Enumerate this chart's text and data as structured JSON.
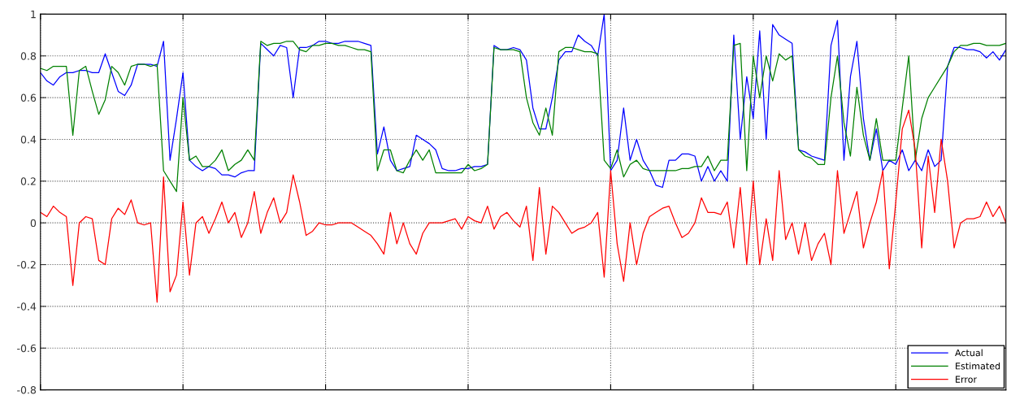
{
  "chart_data": {
    "type": "line",
    "categories": [
      null,
      null,
      null,
      null,
      null,
      null,
      null,
      null,
      null,
      null,
      null,
      null,
      null,
      null,
      null,
      null,
      null,
      null,
      null,
      null,
      null,
      null,
      null,
      null,
      null,
      null,
      null,
      null,
      null,
      null,
      null,
      null,
      null,
      null,
      null,
      null,
      null,
      null,
      null,
      null,
      null,
      null,
      null,
      null,
      null,
      null,
      null,
      null,
      null,
      null,
      null,
      null,
      null,
      null,
      null,
      null,
      null,
      null,
      null,
      null,
      null,
      null,
      null,
      null,
      null,
      null,
      null,
      null,
      null,
      null,
      null,
      null,
      null,
      null,
      null,
      null,
      null,
      null,
      null,
      null,
      null,
      null,
      null,
      null,
      null,
      null,
      null,
      null,
      null,
      null,
      null,
      null,
      null,
      null,
      null,
      null,
      null,
      null,
      null,
      null,
      null,
      null,
      null,
      null,
      null,
      null,
      null,
      null,
      null,
      null,
      null,
      null,
      null,
      null,
      null,
      null,
      null,
      null,
      null,
      null,
      null,
      null,
      null,
      null,
      null,
      null,
      null,
      null,
      null,
      null,
      null,
      null,
      null,
      null,
      null,
      null,
      null,
      null,
      null,
      null,
      null,
      null,
      null,
      null,
      null,
      null,
      null,
      null,
      null,
      null
    ],
    "ylim": [
      -0.8,
      1
    ],
    "yticks": [
      -0.8,
      -0.6,
      -0.4,
      -0.2,
      0,
      0.2,
      0.4,
      0.6,
      0.8,
      1
    ],
    "grid": true,
    "legend": "bottom right",
    "line_style": "solid",
    "marker": "none",
    "series": [
      {
        "name": "Actual",
        "color": "#0000ff",
        "values": [
          0.72,
          0.68,
          0.66,
          0.7,
          0.72,
          0.72,
          0.73,
          0.73,
          0.72,
          0.72,
          0.81,
          0.72,
          0.63,
          0.61,
          0.66,
          0.76,
          0.76,
          0.76,
          0.75,
          0.87,
          0.3,
          0.5,
          0.72,
          0.3,
          0.27,
          0.25,
          0.27,
          0.26,
          0.23,
          0.23,
          0.22,
          0.24,
          0.25,
          0.25,
          0.86,
          0.83,
          0.8,
          0.85,
          0.84,
          0.6,
          0.84,
          0.84,
          0.85,
          0.87,
          0.87,
          0.86,
          0.86,
          0.87,
          0.87,
          0.87,
          0.86,
          0.85,
          0.33,
          0.46,
          0.3,
          0.25,
          0.26,
          0.27,
          0.42,
          0.4,
          0.38,
          0.35,
          0.26,
          0.25,
          0.25,
          0.26,
          0.26,
          0.27,
          0.27,
          0.28,
          0.85,
          0.83,
          0.83,
          0.84,
          0.83,
          0.78,
          0.55,
          0.45,
          0.45,
          0.6,
          0.78,
          0.82,
          0.82,
          0.9,
          0.87,
          0.85,
          0.8,
          1.0,
          0.25,
          0.3,
          0.55,
          0.3,
          0.4,
          0.3,
          0.25,
          0.18,
          0.17,
          0.3,
          0.3,
          0.33,
          0.33,
          0.32,
          0.2,
          0.27,
          0.2,
          0.25,
          0.2,
          0.9,
          0.4,
          0.7,
          0.5,
          0.92,
          0.4,
          0.95,
          0.9,
          0.88,
          0.86,
          0.35,
          0.34,
          0.32,
          0.31,
          0.3,
          0.85,
          0.97,
          0.3,
          0.7,
          0.87,
          0.5,
          0.3,
          0.45,
          0.25,
          0.3,
          0.28,
          0.35,
          0.25,
          0.3,
          0.25,
          0.35,
          0.27,
          0.3,
          0.75,
          0.84,
          0.84,
          0.83,
          0.83,
          0.82,
          0.79,
          0.82,
          0.78,
          0.83
        ]
      },
      {
        "name": "Estimated",
        "color": "#008000",
        "values": [
          0.74,
          0.73,
          0.75,
          0.75,
          0.75,
          0.42,
          0.73,
          0.75,
          0.63,
          0.52,
          0.59,
          0.75,
          0.72,
          0.66,
          0.75,
          0.76,
          0.76,
          0.75,
          0.76,
          0.25,
          0.2,
          0.15,
          0.6,
          0.3,
          0.32,
          0.27,
          0.27,
          0.3,
          0.35,
          0.25,
          0.28,
          0.3,
          0.35,
          0.3,
          0.87,
          0.85,
          0.86,
          0.86,
          0.87,
          0.87,
          0.83,
          0.82,
          0.85,
          0.85,
          0.86,
          0.86,
          0.85,
          0.85,
          0.84,
          0.83,
          0.83,
          0.82,
          0.25,
          0.35,
          0.35,
          0.25,
          0.24,
          0.3,
          0.35,
          0.3,
          0.35,
          0.24,
          0.24,
          0.24,
          0.24,
          0.24,
          0.28,
          0.25,
          0.26,
          0.28,
          0.84,
          0.83,
          0.83,
          0.83,
          0.82,
          0.6,
          0.48,
          0.42,
          0.55,
          0.42,
          0.82,
          0.84,
          0.84,
          0.83,
          0.82,
          0.82,
          0.81,
          0.3,
          0.26,
          0.35,
          0.22,
          0.28,
          0.3,
          0.26,
          0.25,
          0.25,
          0.25,
          0.25,
          0.25,
          0.26,
          0.26,
          0.27,
          0.27,
          0.32,
          0.25,
          0.3,
          0.3,
          0.85,
          0.86,
          0.25,
          0.8,
          0.6,
          0.8,
          0.68,
          0.81,
          0.78,
          0.8,
          0.35,
          0.32,
          0.31,
          0.28,
          0.28,
          0.6,
          0.8,
          0.48,
          0.32,
          0.65,
          0.42,
          0.3,
          0.5,
          0.3,
          0.3,
          0.3,
          0.55,
          0.8,
          0.3,
          0.5,
          0.6,
          0.65,
          0.7,
          0.75,
          0.82,
          0.85,
          0.85,
          0.86,
          0.86,
          0.85,
          0.85,
          0.85,
          0.86
        ]
      },
      {
        "name": "Error",
        "color": "#ff0000",
        "values": [
          0.05,
          0.03,
          0.08,
          0.05,
          0.03,
          -0.3,
          0.0,
          0.03,
          0.02,
          -0.18,
          -0.2,
          0.02,
          0.07,
          0.04,
          0.11,
          0.0,
          -0.01,
          0.0,
          -0.38,
          0.22,
          -0.33,
          -0.25,
          0.1,
          -0.25,
          0.0,
          0.03,
          -0.05,
          0.02,
          0.1,
          0.0,
          0.05,
          -0.07,
          0.0,
          0.15,
          -0.05,
          0.05,
          0.12,
          0.0,
          0.05,
          0.23,
          0.1,
          -0.06,
          -0.04,
          0.0,
          -0.01,
          -0.01,
          0.0,
          0.0,
          0.0,
          -0.02,
          -0.04,
          -0.06,
          -0.1,
          -0.15,
          0.05,
          -0.1,
          0.0,
          -0.1,
          -0.15,
          -0.05,
          0.0,
          0.0,
          0.0,
          0.01,
          0.02,
          -0.03,
          0.03,
          0.01,
          0.0,
          0.08,
          -0.03,
          0.03,
          0.05,
          0.01,
          -0.02,
          0.08,
          -0.18,
          0.17,
          -0.15,
          0.08,
          0.05,
          0.0,
          -0.05,
          -0.03,
          -0.02,
          0.0,
          0.05,
          -0.26,
          0.25,
          -0.1,
          -0.28,
          0.0,
          -0.2,
          -0.05,
          0.03,
          0.05,
          0.07,
          0.08,
          0.0,
          -0.07,
          -0.05,
          0.0,
          0.12,
          0.05,
          0.05,
          0.04,
          0.1,
          -0.12,
          0.17,
          -0.2,
          0.2,
          -0.2,
          0.02,
          -0.18,
          0.25,
          -0.08,
          0.0,
          -0.15,
          0.0,
          -0.18,
          -0.1,
          -0.05,
          -0.2,
          0.25,
          -0.05,
          0.05,
          0.15,
          -0.12,
          0.0,
          0.1,
          0.25,
          -0.22,
          0.1,
          0.45,
          0.54,
          0.35,
          -0.12,
          0.32,
          0.05,
          0.4,
          0.2,
          -0.12,
          0.0,
          0.02,
          0.02,
          0.03,
          0.1,
          0.03,
          0.08,
          0.0
        ]
      }
    ]
  }
}
